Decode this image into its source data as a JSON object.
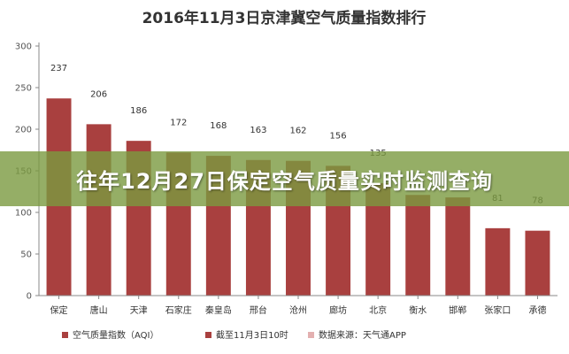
{
  "chart_data": {
    "type": "bar",
    "title": "2016年11月3日京津冀空气质量指数排行",
    "categories": [
      "保定",
      "唐山",
      "天津",
      "石家庄",
      "秦皇岛",
      "邢台",
      "沧州",
      "廊坊",
      "北京",
      "衡水",
      "邯郸",
      "张家口",
      "承德"
    ],
    "series": [
      {
        "name": "空气质量指数（AQI）",
        "values": [
          237,
          206,
          186,
          172,
          168,
          163,
          162,
          156,
          135,
          121,
          118,
          81,
          78
        ],
        "labels": [
          "237",
          "206",
          "186",
          "172",
          "168",
          "163",
          "162",
          "156",
          "135",
          "",
          "",
          "81",
          "78"
        ]
      }
    ],
    "ylim": [
      0,
      300
    ],
    "yticks": [
      0,
      50,
      100,
      150,
      200,
      250,
      300
    ],
    "grid": false,
    "legend_position": "bottom",
    "legend": [
      {
        "label": "空气质量指数（AQI）",
        "color": "#a9403f"
      },
      {
        "label": "截至11月3日10时",
        "color": "#a9403f"
      },
      {
        "label": "数据来源：天气通APP",
        "color": "#e3b0b0"
      }
    ],
    "bar_color": "#a9403f"
  },
  "banner": {
    "text": "往年12月27日保定空气质量实时监测查询",
    "color": "#7a9a40"
  }
}
